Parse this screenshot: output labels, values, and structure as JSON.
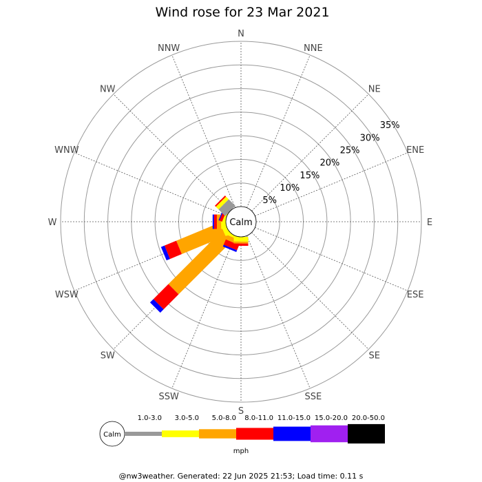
{
  "chart_data": {
    "type": "wind-rose",
    "title": "Wind rose for 23 Mar 2021",
    "center_label": "Calm",
    "directions": [
      "N",
      "NNE",
      "NE",
      "ENE",
      "E",
      "ESE",
      "SE",
      "SSE",
      "S",
      "SSW",
      "SW",
      "WSW",
      "W",
      "WNW",
      "NW",
      "NNW"
    ],
    "radial_ticks": [
      "5%",
      "10%",
      "15%",
      "20%",
      "25%",
      "30%",
      "35%"
    ],
    "radial_max": 35,
    "legend": {
      "calm_label": "Calm",
      "bins": [
        {
          "label": "1.0-3.0",
          "color": "#999999"
        },
        {
          "label": "3.0-5.0",
          "color": "#ffff00"
        },
        {
          "label": "5.0-8.0",
          "color": "#ffa500"
        },
        {
          "label": "8.0-11.0",
          "color": "#ff0000"
        },
        {
          "label": "11.0-15.0",
          "color": "#0000ff"
        },
        {
          "label": "15.0-20.0",
          "color": "#a020f0"
        },
        {
          "label": "20.0-50.0",
          "color": "#000000"
        }
      ],
      "unit": "mph"
    },
    "series": [
      {
        "direction": "SW",
        "values": [
          0,
          1,
          16,
          4.5,
          1,
          0,
          0
        ]
      },
      {
        "direction": "WSW",
        "values": [
          0,
          1,
          10,
          2.7,
          0.8,
          0,
          0
        ]
      },
      {
        "direction": "W",
        "values": [
          0,
          1,
          0.9,
          0.6,
          0.3,
          0,
          0
        ]
      },
      {
        "direction": "WNW",
        "values": [
          0,
          0.5,
          0,
          0.6,
          0.2,
          0,
          0
        ]
      },
      {
        "direction": "NW",
        "values": [
          2,
          0.8,
          0,
          0.3,
          0,
          0,
          0
        ]
      },
      {
        "direction": "SSW",
        "values": [
          0,
          0.5,
          1,
          1.2,
          0.4,
          0,
          0
        ]
      },
      {
        "direction": "S",
        "values": [
          0,
          1,
          0.4,
          0.5,
          0,
          0,
          0
        ]
      }
    ]
  },
  "footer": "@nw3weather. Generated: 22 Jun 2025 21:53; Load time: 0.11 s"
}
